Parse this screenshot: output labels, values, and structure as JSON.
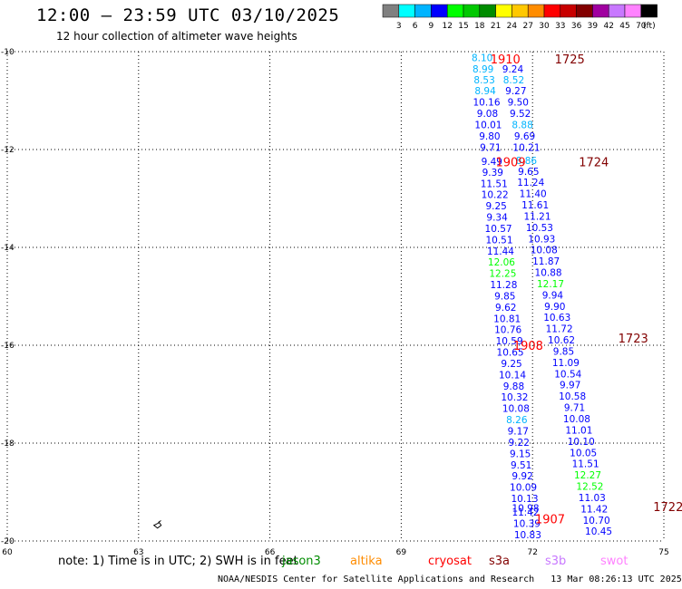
{
  "header": {
    "title": "12:00 — 23:59 UTC 03/10/2025",
    "subtitle": "12 hour collection of altimeter wave heights"
  },
  "legend": {
    "labels": [
      "3",
      "6",
      "9",
      "12",
      "15",
      "18",
      "21",
      "24",
      "27",
      "30",
      "33",
      "36",
      "39",
      "42",
      "45",
      "70"
    ],
    "unit": "(ft)",
    "colors": [
      "#808080",
      "#00ffff",
      "#00b4ff",
      "#0000ff",
      "#00ff00",
      "#00c800",
      "#008c00",
      "#ffff00",
      "#ffc800",
      "#ff8c00",
      "#ff0000",
      "#c80000",
      "#820000",
      "#a000a0",
      "#c878ff",
      "#ff82ff",
      "#000000"
    ]
  },
  "chart_data": {
    "type": "scatter",
    "xlim": [
      60,
      75
    ],
    "ylim": [
      -20,
      -10
    ],
    "xticks": [
      "60",
      "63",
      "66",
      "69",
      "72",
      "75"
    ],
    "yticks": [
      "-10",
      "-12",
      "-14",
      "-16",
      "-18",
      "-20"
    ],
    "grid": true,
    "tracks": [
      {
        "name": "1910",
        "label_pos": [
          71.38,
          -10.15
        ]
      },
      {
        "name": "1909",
        "label_pos": [
          71.5,
          -12.25
        ]
      },
      {
        "name": "1908",
        "label_pos": [
          71.9,
          -16.0
        ]
      },
      {
        "name": "1907",
        "label_pos": [
          72.4,
          -19.55
        ]
      }
    ],
    "passes": [
      {
        "name": "1725",
        "label_pos": [
          72.85,
          -10.15
        ]
      },
      {
        "name": "1724",
        "label_pos": [
          73.4,
          -12.25
        ]
      },
      {
        "name": "1723",
        "label_pos": [
          74.3,
          -15.85
        ]
      },
      {
        "name": "1722",
        "label_pos": [
          75.1,
          -19.3
        ]
      }
    ],
    "points": [
      {
        "x": 70.85,
        "y": -10.12,
        "v": "8.10",
        "c": "#00b4ff"
      },
      {
        "x": 70.87,
        "y": -10.35,
        "v": "8.99",
        "c": "#00b4ff"
      },
      {
        "x": 70.9,
        "y": -10.57,
        "v": "8.53",
        "c": "#00b4ff"
      },
      {
        "x": 70.92,
        "y": -10.8,
        "v": "8.94",
        "c": "#00b4ff"
      },
      {
        "x": 70.95,
        "y": -11.03,
        "v": "10.16",
        "c": "#0000ff"
      },
      {
        "x": 70.97,
        "y": -11.26,
        "v": "9.08",
        "c": "#0000ff"
      },
      {
        "x": 70.99,
        "y": -11.49,
        "v": "10.01",
        "c": "#0000ff"
      },
      {
        "x": 71.02,
        "y": -11.72,
        "v": "9.80",
        "c": "#0000ff"
      },
      {
        "x": 71.04,
        "y": -11.95,
        "v": "9.71",
        "c": "#0000ff"
      },
      {
        "x": 71.07,
        "y": -12.24,
        "v": "9.49",
        "c": "#0000ff"
      },
      {
        "x": 71.09,
        "y": -12.46,
        "v": "9.39",
        "c": "#0000ff"
      },
      {
        "x": 71.12,
        "y": -12.69,
        "v": "11.51",
        "c": "#0000ff"
      },
      {
        "x": 71.14,
        "y": -12.92,
        "v": "10.22",
        "c": "#0000ff"
      },
      {
        "x": 71.17,
        "y": -13.15,
        "v": "9.25",
        "c": "#0000ff"
      },
      {
        "x": 71.19,
        "y": -13.38,
        "v": "9.34",
        "c": "#0000ff"
      },
      {
        "x": 71.22,
        "y": -13.61,
        "v": "10.57",
        "c": "#0000ff"
      },
      {
        "x": 71.24,
        "y": -13.84,
        "v": "10.51",
        "c": "#0000ff"
      },
      {
        "x": 71.27,
        "y": -14.07,
        "v": "11.44",
        "c": "#0000ff"
      },
      {
        "x": 71.29,
        "y": -14.3,
        "v": "12.06",
        "c": "#00ff00"
      },
      {
        "x": 71.32,
        "y": -14.53,
        "v": "12.25",
        "c": "#00ff00"
      },
      {
        "x": 71.34,
        "y": -14.76,
        "v": "11.28",
        "c": "#0000ff"
      },
      {
        "x": 71.37,
        "y": -14.99,
        "v": "9.85",
        "c": "#0000ff"
      },
      {
        "x": 71.39,
        "y": -15.22,
        "v": "9.62",
        "c": "#0000ff"
      },
      {
        "x": 71.42,
        "y": -15.45,
        "v": "10.81",
        "c": "#0000ff"
      },
      {
        "x": 71.44,
        "y": -15.68,
        "v": "10.76",
        "c": "#0000ff"
      },
      {
        "x": 71.47,
        "y": -15.91,
        "v": "10.59",
        "c": "#0000ff"
      },
      {
        "x": 71.49,
        "y": -16.14,
        "v": "10.65",
        "c": "#0000ff"
      },
      {
        "x": 71.52,
        "y": -16.37,
        "v": "9.25",
        "c": "#0000ff"
      },
      {
        "x": 71.54,
        "y": -16.6,
        "v": "10.14",
        "c": "#0000ff"
      },
      {
        "x": 71.57,
        "y": -16.83,
        "v": "9.88",
        "c": "#0000ff"
      },
      {
        "x": 71.59,
        "y": -17.06,
        "v": "10.32",
        "c": "#0000ff"
      },
      {
        "x": 71.62,
        "y": -17.29,
        "v": "10.08",
        "c": "#0000ff"
      },
      {
        "x": 71.64,
        "y": -17.52,
        "v": "8.26",
        "c": "#00b4ff"
      },
      {
        "x": 71.67,
        "y": -17.75,
        "v": "9.17",
        "c": "#0000ff"
      },
      {
        "x": 71.69,
        "y": -17.98,
        "v": "9.22",
        "c": "#0000ff"
      },
      {
        "x": 71.72,
        "y": -18.21,
        "v": "9.15",
        "c": "#0000ff"
      },
      {
        "x": 71.74,
        "y": -18.44,
        "v": "9.51",
        "c": "#0000ff"
      },
      {
        "x": 71.77,
        "y": -18.67,
        "v": "9.92",
        "c": "#0000ff"
      },
      {
        "x": 71.79,
        "y": -18.9,
        "v": "10.09",
        "c": "#0000ff"
      },
      {
        "x": 71.82,
        "y": -19.13,
        "v": "10.13",
        "c": "#0000ff"
      },
      {
        "x": 71.84,
        "y": -19.32,
        "v": "10.98",
        "c": "#0000ff"
      },
      {
        "x": 71.84,
        "y": -19.41,
        "v": "11.42",
        "c": "#0000ff"
      },
      {
        "x": 71.87,
        "y": -19.64,
        "v": "10.39",
        "c": "#0000ff"
      },
      {
        "x": 71.89,
        "y": -19.87,
        "v": "10.83",
        "c": "#0000ff"
      },
      {
        "x": 71.55,
        "y": -10.35,
        "v": "9.24",
        "c": "#0000ff"
      },
      {
        "x": 71.57,
        "y": -10.57,
        "v": "8.52",
        "c": "#00b4ff"
      },
      {
        "x": 71.62,
        "y": -10.8,
        "v": "9.27",
        "c": "#0000ff"
      },
      {
        "x": 71.67,
        "y": -11.03,
        "v": "9.50",
        "c": "#0000ff"
      },
      {
        "x": 71.72,
        "y": -11.26,
        "v": "9.52",
        "c": "#0000ff"
      },
      {
        "x": 71.77,
        "y": -11.49,
        "v": "8.88",
        "c": "#00b4ff"
      },
      {
        "x": 71.82,
        "y": -11.72,
        "v": "9.69",
        "c": "#0000ff"
      },
      {
        "x": 71.86,
        "y": -11.95,
        "v": "10.21",
        "c": "#0000ff"
      },
      {
        "x": 71.86,
        "y": -12.22,
        "v": "8.86",
        "c": "#00b4ff"
      },
      {
        "x": 71.91,
        "y": -12.44,
        "v": "9.65",
        "c": "#0000ff"
      },
      {
        "x": 71.96,
        "y": -12.67,
        "v": "11.24",
        "c": "#0000ff"
      },
      {
        "x": 72.01,
        "y": -12.9,
        "v": "11.40",
        "c": "#0000ff"
      },
      {
        "x": 72.06,
        "y": -13.13,
        "v": "11.61",
        "c": "#0000ff"
      },
      {
        "x": 72.11,
        "y": -13.36,
        "v": "11.21",
        "c": "#0000ff"
      },
      {
        "x": 72.16,
        "y": -13.59,
        "v": "10.53",
        "c": "#0000ff"
      },
      {
        "x": 72.21,
        "y": -13.82,
        "v": "10.93",
        "c": "#0000ff"
      },
      {
        "x": 72.26,
        "y": -14.05,
        "v": "10.08",
        "c": "#0000ff"
      },
      {
        "x": 72.31,
        "y": -14.28,
        "v": "11.87",
        "c": "#0000ff"
      },
      {
        "x": 72.36,
        "y": -14.51,
        "v": "10.88",
        "c": "#0000ff"
      },
      {
        "x": 72.41,
        "y": -14.74,
        "v": "12.17",
        "c": "#00ff00"
      },
      {
        "x": 72.46,
        "y": -14.97,
        "v": "9.94",
        "c": "#0000ff"
      },
      {
        "x": 72.51,
        "y": -15.2,
        "v": "9.90",
        "c": "#0000ff"
      },
      {
        "x": 72.56,
        "y": -15.43,
        "v": "10.63",
        "c": "#0000ff"
      },
      {
        "x": 72.61,
        "y": -15.66,
        "v": "11.72",
        "c": "#0000ff"
      },
      {
        "x": 72.66,
        "y": -15.89,
        "v": "10.62",
        "c": "#0000ff"
      },
      {
        "x": 72.71,
        "y": -16.12,
        "v": "9.85",
        "c": "#0000ff"
      },
      {
        "x": 72.76,
        "y": -16.35,
        "v": "11.09",
        "c": "#0000ff"
      },
      {
        "x": 72.81,
        "y": -16.58,
        "v": "10.54",
        "c": "#0000ff"
      },
      {
        "x": 72.86,
        "y": -16.81,
        "v": "9.97",
        "c": "#0000ff"
      },
      {
        "x": 72.91,
        "y": -17.04,
        "v": "10.58",
        "c": "#0000ff"
      },
      {
        "x": 72.96,
        "y": -17.27,
        "v": "9.71",
        "c": "#0000ff"
      },
      {
        "x": 73.01,
        "y": -17.5,
        "v": "10.08",
        "c": "#0000ff"
      },
      {
        "x": 73.06,
        "y": -17.73,
        "v": "11.01",
        "c": "#0000ff"
      },
      {
        "x": 73.11,
        "y": -17.96,
        "v": "10.10",
        "c": "#0000ff"
      },
      {
        "x": 73.16,
        "y": -18.19,
        "v": "10.05",
        "c": "#0000ff"
      },
      {
        "x": 73.21,
        "y": -18.42,
        "v": "11.51",
        "c": "#0000ff"
      },
      {
        "x": 73.26,
        "y": -18.65,
        "v": "12.27",
        "c": "#00ff00"
      },
      {
        "x": 73.31,
        "y": -18.88,
        "v": "12.52",
        "c": "#00ff00"
      },
      {
        "x": 73.36,
        "y": -19.11,
        "v": "11.03",
        "c": "#0000ff"
      },
      {
        "x": 73.41,
        "y": -19.34,
        "v": "11.42",
        "c": "#0000ff"
      },
      {
        "x": 73.46,
        "y": -19.57,
        "v": "10.70",
        "c": "#0000ff"
      },
      {
        "x": 73.51,
        "y": -19.8,
        "v": "10.45",
        "c": "#0000ff"
      }
    ]
  },
  "notes": {
    "text": "note: 1) Time is in UTC; 2) SWH is in feet",
    "satellites": [
      {
        "name": "jason3",
        "color": "#008c00"
      },
      {
        "name": "altika",
        "color": "#ff8c00"
      },
      {
        "name": "cryosat",
        "color": "#ff0000"
      },
      {
        "name": "s3a",
        "color": "#820000"
      },
      {
        "name": "s3b",
        "color": "#c878ff"
      },
      {
        "name": "swot",
        "color": "#ff82ff"
      }
    ]
  },
  "footer": {
    "credit": "NOAA/NESDIS Center for Satellite Applications and Research",
    "timestamp": "13 Mar 08:26:13 UTC 2025"
  }
}
